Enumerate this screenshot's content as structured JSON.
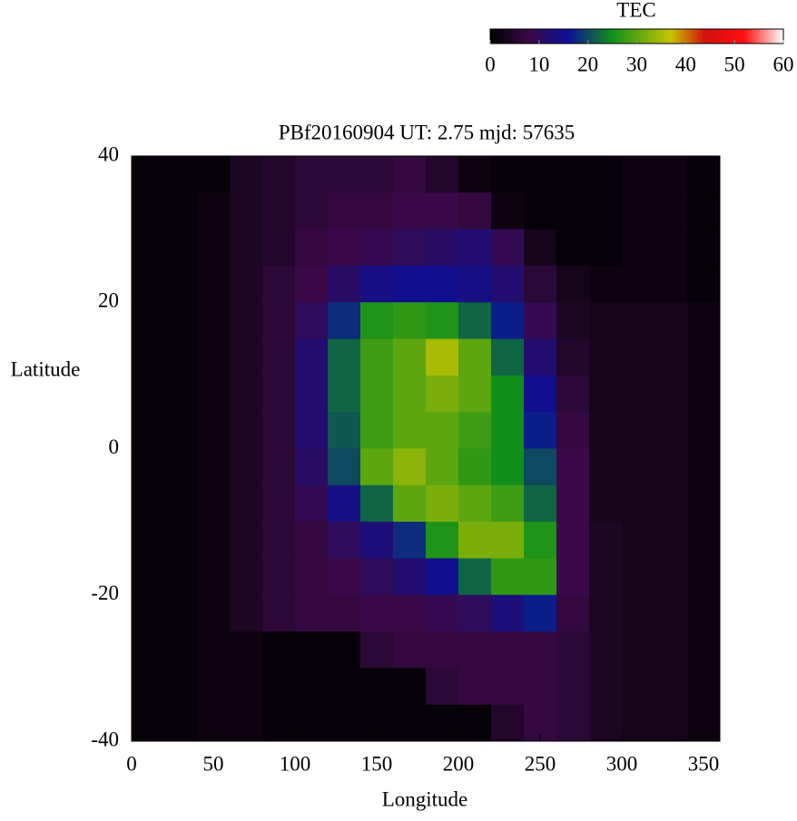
{
  "chart_data": {
    "type": "heatmap",
    "title": "PBf20160904  UT: 2.75  mjd: 57635",
    "xlabel": "Longitude",
    "ylabel": "Latitude",
    "xlim": [
      0,
      360
    ],
    "xticks": [
      0,
      50,
      100,
      150,
      200,
      250,
      300,
      350
    ],
    "ylim": [
      -40,
      40
    ],
    "yticks": [
      -40,
      -20,
      0,
      20,
      40
    ],
    "x_bins": [
      0,
      20,
      40,
      60,
      80,
      100,
      120,
      140,
      160,
      180,
      200,
      220,
      240,
      260,
      280,
      300,
      320,
      340,
      360
    ],
    "y_bins": [
      40,
      35,
      30,
      25,
      20,
      15,
      10,
      5,
      0,
      -5,
      -10,
      -15,
      -20,
      -25,
      -30,
      -35,
      -40
    ],
    "z": [
      [
        1,
        1,
        1,
        4,
        5,
        6,
        6,
        6,
        7,
        5,
        2,
        1,
        1,
        1,
        1,
        2,
        2,
        1
      ],
      [
        1,
        1,
        2,
        4,
        5,
        6,
        7,
        7,
        8,
        8,
        7,
        2,
        1,
        1,
        1,
        2,
        2,
        1
      ],
      [
        1,
        1,
        2,
        4,
        5,
        7,
        8,
        9,
        10,
        11,
        12,
        9,
        3,
        1,
        1,
        2,
        2,
        1
      ],
      [
        1,
        1,
        2,
        4,
        6,
        8,
        11,
        14,
        15,
        15,
        14,
        12,
        6,
        3,
        2,
        2,
        2,
        1
      ],
      [
        1,
        1,
        2,
        4,
        6,
        10,
        18,
        26,
        27,
        26,
        22,
        17,
        9,
        4,
        3,
        3,
        3,
        2
      ],
      [
        1,
        1,
        2,
        4,
        6,
        12,
        22,
        28,
        30,
        35,
        30,
        22,
        12,
        5,
        3,
        3,
        3,
        2
      ],
      [
        1,
        1,
        2,
        4,
        6,
        12,
        22,
        28,
        30,
        32,
        30,
        25,
        15,
        6,
        3,
        3,
        3,
        2
      ],
      [
        1,
        1,
        2,
        4,
        6,
        12,
        21,
        28,
        30,
        30,
        28,
        25,
        17,
        7,
        3,
        3,
        3,
        2
      ],
      [
        1,
        1,
        2,
        4,
        6,
        11,
        20,
        30,
        33,
        30,
        27,
        25,
        20,
        8,
        3,
        3,
        3,
        2
      ],
      [
        1,
        1,
        2,
        4,
        6,
        9,
        14,
        22,
        30,
        32,
        30,
        28,
        22,
        8,
        3,
        3,
        3,
        2
      ],
      [
        1,
        1,
        2,
        4,
        6,
        7,
        10,
        13,
        18,
        26,
        32,
        32,
        26,
        8,
        4,
        3,
        3,
        2
      ],
      [
        1,
        1,
        2,
        4,
        6,
        7,
        8,
        10,
        12,
        15,
        22,
        27,
        27,
        8,
        4,
        3,
        3,
        2
      ],
      [
        1,
        1,
        2,
        4,
        6,
        7,
        7,
        8,
        8,
        9,
        10,
        13,
        17,
        7,
        4,
        3,
        3,
        2
      ],
      [
        1,
        1,
        2,
        2,
        1,
        1,
        1,
        6,
        7,
        7,
        7,
        7,
        7,
        6,
        4,
        3,
        3,
        2
      ],
      [
        1,
        1,
        2,
        2,
        1,
        1,
        1,
        1,
        1,
        6,
        7,
        7,
        7,
        6,
        4,
        3,
        3,
        2
      ],
      [
        1,
        1,
        2,
        2,
        1,
        1,
        1,
        1,
        1,
        1,
        1,
        5,
        7,
        6,
        4,
        3,
        3,
        2
      ]
    ],
    "colorbar": {
      "title": "TEC",
      "lim": [
        0,
        60
      ],
      "ticks": [
        0,
        10,
        20,
        30,
        40,
        50,
        60
      ],
      "colorscale": [
        [
          0,
          "#000000"
        ],
        [
          8,
          "#3a0a48"
        ],
        [
          16,
          "#0c1098"
        ],
        [
          25,
          "#10901a"
        ],
        [
          37,
          "#c8c400"
        ],
        [
          44,
          "#d01010"
        ],
        [
          52,
          "#ff1010"
        ],
        [
          60,
          "#ffffff"
        ]
      ]
    }
  }
}
